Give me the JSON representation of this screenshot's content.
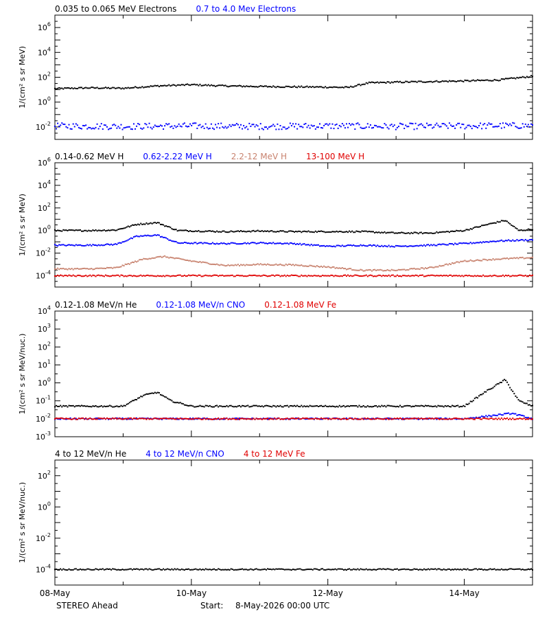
{
  "chart_data": [
    {
      "type": "scatter",
      "legend_placement": "top-left",
      "ylabel": "1/(cm² s sr MeV)",
      "yscale": "log",
      "ylim_exp": [
        -3,
        7
      ],
      "ytick_exps": [
        -2,
        0,
        2,
        4,
        6
      ],
      "series": [
        {
          "name": "0.035 to 0.065 MeV Electrons",
          "color": "#000000",
          "x": [
            0,
            0.5,
            1,
            1.5,
            2,
            2.5,
            3,
            3.5,
            4,
            4.3,
            4.6,
            5,
            5.5,
            6,
            6.5,
            7
          ],
          "y": [
            12,
            14,
            13,
            20,
            25,
            20,
            18,
            17,
            16,
            15,
            35,
            40,
            45,
            50,
            60,
            120
          ]
        },
        {
          "name": "0.7 to 4.0 Mev Electrons",
          "color": "#0000ff",
          "x": [
            0,
            1,
            2,
            3,
            4,
            5,
            6,
            7
          ],
          "y": [
            0.012,
            0.011,
            0.012,
            0.011,
            0.012,
            0.011,
            0.012,
            0.013
          ]
        }
      ]
    },
    {
      "type": "scatter",
      "legend_placement": "top-left",
      "ylabel": "1/(cm² s sr MeV)",
      "yscale": "log",
      "ylim_exp": [
        -5,
        6
      ],
      "ytick_exps": [
        -4,
        -2,
        0,
        2,
        4,
        6
      ],
      "series": [
        {
          "name": "0.14-0.62 MeV H",
          "color": "#000000",
          "x": [
            0,
            0.5,
            0.9,
            1.2,
            1.5,
            1.8,
            2.5,
            3,
            3.5,
            4,
            4.5,
            5,
            5.5,
            6,
            6.3,
            6.6,
            6.8,
            7
          ],
          "y": [
            1.0,
            1.0,
            1.1,
            3.5,
            5.0,
            1.0,
            0.8,
            0.9,
            0.8,
            0.8,
            0.8,
            0.6,
            0.6,
            1.0,
            3.0,
            8.0,
            1.0,
            1.3
          ]
        },
        {
          "name": "0.62-2.22 MeV H",
          "color": "#0000ff",
          "x": [
            0,
            0.5,
            0.9,
            1.2,
            1.5,
            1.8,
            2.5,
            3,
            3.5,
            4,
            4.5,
            5,
            5.5,
            6,
            6.5,
            7
          ],
          "y": [
            0.05,
            0.05,
            0.06,
            0.3,
            0.4,
            0.08,
            0.07,
            0.08,
            0.07,
            0.04,
            0.05,
            0.04,
            0.05,
            0.07,
            0.12,
            0.15
          ]
        },
        {
          "name": "2.2-12 MeV H",
          "color": "#c8826e",
          "x": [
            0,
            0.5,
            0.9,
            1.3,
            1.6,
            2,
            2.5,
            3,
            3.5,
            4,
            4.5,
            5,
            5.5,
            6,
            6.5,
            7
          ],
          "y": [
            0.0004,
            0.0004,
            0.0005,
            0.003,
            0.005,
            0.002,
            0.0008,
            0.001,
            0.0009,
            0.0006,
            0.0003,
            0.0003,
            0.0005,
            0.002,
            0.003,
            0.004
          ]
        },
        {
          "name": "13-100 MeV H",
          "color": "#e00000",
          "x": [
            0,
            1,
            2,
            3,
            4,
            5,
            6,
            7
          ],
          "y": [
            0.0001,
            0.0001,
            0.0001,
            0.0001,
            0.0001,
            0.0001,
            0.0001,
            0.0001
          ]
        }
      ]
    },
    {
      "type": "scatter",
      "legend_placement": "top-left",
      "ylabel": "1/(cm² s sr MeV/nuc.)",
      "yscale": "log",
      "ylim_exp": [
        -3,
        4
      ],
      "ytick_exps": [
        -3,
        -2,
        -1,
        0,
        1,
        2,
        3,
        4
      ],
      "series": [
        {
          "name": "0.12-1.08 MeV/n He",
          "color": "#000000",
          "x": [
            0,
            0.5,
            1,
            1.3,
            1.5,
            1.7,
            2,
            2.5,
            3,
            3.5,
            4,
            4.5,
            5,
            5.5,
            6,
            6.3,
            6.6,
            6.8,
            7
          ],
          "y": [
            0.05,
            0.05,
            0.05,
            0.2,
            0.3,
            0.1,
            0.05,
            0.05,
            0.05,
            0.05,
            0.05,
            0.05,
            0.05,
            0.05,
            0.05,
            0.3,
            1.5,
            0.1,
            0.05
          ]
        },
        {
          "name": "0.12-1.08 MeV/n CNO",
          "color": "#0000ff",
          "x": [
            0,
            1,
            2,
            3,
            4,
            5,
            6,
            6.7,
            7
          ],
          "y": [
            0.01,
            0.01,
            0.01,
            0.01,
            0.01,
            0.01,
            0.01,
            0.02,
            0.01
          ]
        },
        {
          "name": "0.12-1.08 MeV Fe",
          "color": "#e00000",
          "x": [
            0,
            1,
            2,
            3,
            4,
            5,
            6,
            7
          ],
          "y": [
            0.01,
            0.01,
            0.01,
            0.01,
            0.01,
            0.01,
            0.01,
            0.01
          ]
        }
      ]
    },
    {
      "type": "scatter",
      "legend_placement": "top-left",
      "ylabel": "1/(cm² s sr MeV/nuc.)",
      "yscale": "log",
      "ylim_exp": [
        -5,
        3
      ],
      "ytick_exps": [
        -4,
        -2,
        0,
        2
      ],
      "series": [
        {
          "name": "4 to 12 MeV/n He",
          "color": "#000000",
          "x": [
            0,
            1,
            2,
            3,
            4,
            5,
            6,
            7
          ],
          "y": [
            0.0001,
            0.0001,
            0.0001,
            0.0001,
            0.0001,
            0.0001,
            0.0001,
            0.0001
          ]
        },
        {
          "name": "4 to 12 MeV/n CNO",
          "color": "#0000ff",
          "x": [],
          "y": []
        },
        {
          "name": "4 to 12 MeV Fe",
          "color": "#e00000",
          "x": [],
          "y": []
        }
      ]
    }
  ],
  "xaxis": {
    "unit": "days",
    "xlim": [
      0,
      7
    ],
    "ticks": [
      {
        "v": 0,
        "label": "08-May"
      },
      {
        "v": 2,
        "label": "10-May"
      },
      {
        "v": 4,
        "label": "12-May"
      },
      {
        "v": 6,
        "label": "14-May"
      }
    ]
  },
  "footer": {
    "spacecraft": "STEREO Ahead",
    "start_label": "Start:",
    "start_value": "8-May-2026 00:00 UTC"
  }
}
